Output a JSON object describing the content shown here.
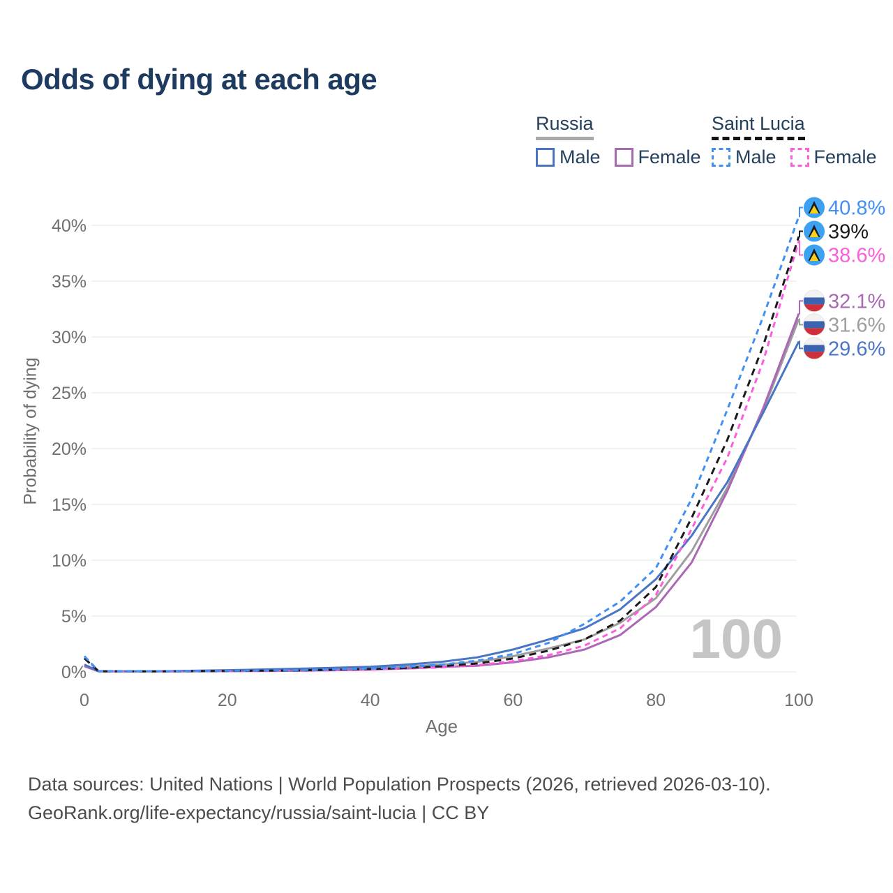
{
  "title": "Odds of dying at each age",
  "watermark": "100",
  "legend": {
    "groups": [
      {
        "label": "Russia",
        "line_style": "solid",
        "underline_color": "#a8a8a8",
        "items": [
          {
            "label": "Male",
            "color": "#4a75c4"
          },
          {
            "label": "Female",
            "color": "#ab68b4"
          }
        ]
      },
      {
        "label": "Saint Lucia",
        "line_style": "dashed",
        "underline_color": "#141414",
        "items": [
          {
            "label": "Male",
            "color": "#4090f5"
          },
          {
            "label": "Female",
            "color": "#fb5ddd"
          }
        ]
      }
    ]
  },
  "chart_data": {
    "type": "line",
    "title": "Odds of dying at each age",
    "xlabel": "Age",
    "ylabel": "Probability of dying",
    "xlim": [
      0,
      100
    ],
    "ylim": [
      0,
      42
    ],
    "grid": "horizontal",
    "x_ticks": [
      0,
      20,
      40,
      60,
      80,
      100
    ],
    "y_ticks": [
      "0%",
      "5%",
      "10%",
      "15%",
      "20%",
      "25%",
      "30%",
      "35%",
      "40%"
    ],
    "y_tick_values": [
      0,
      5,
      10,
      15,
      20,
      25,
      30,
      35,
      40
    ],
    "x": [
      0,
      2,
      10,
      20,
      30,
      40,
      45,
      50,
      55,
      60,
      65,
      70,
      75,
      80,
      85,
      90,
      95,
      100
    ],
    "series": [
      {
        "id": "russia-both",
        "name": "Russia (both sexes)",
        "country": "Russia",
        "sex": "Both",
        "style": "solid",
        "color": "#9e9e9e",
        "flag": "russia",
        "end_label": "31.6%",
        "values": [
          0.55,
          0.04,
          0.04,
          0.1,
          0.18,
          0.32,
          0.48,
          0.65,
          0.9,
          1.4,
          2.1,
          2.9,
          4.4,
          6.6,
          10.8,
          16.5,
          23.4,
          31.6
        ]
      },
      {
        "id": "russia-female",
        "name": "Russia Female",
        "country": "Russia",
        "sex": "Female",
        "style": "solid",
        "color": "#ab68b4",
        "flag": "russia",
        "end_label": "32.1%",
        "values": [
          0.5,
          0.04,
          0.03,
          0.06,
          0.1,
          0.2,
          0.3,
          0.45,
          0.55,
          0.85,
          1.3,
          2.0,
          3.3,
          5.8,
          9.8,
          16.2,
          23.6,
          32.1
        ]
      },
      {
        "id": "russia-male",
        "name": "Russia Male",
        "country": "Russia",
        "sex": "Male",
        "style": "solid",
        "color": "#4a75c4",
        "flag": "russia",
        "end_label": "29.6%",
        "values": [
          0.65,
          0.05,
          0.05,
          0.15,
          0.28,
          0.45,
          0.65,
          0.9,
          1.3,
          2.0,
          2.9,
          3.9,
          5.6,
          8.3,
          12.2,
          17.0,
          23.2,
          29.6
        ]
      },
      {
        "id": "saint-lucia-female",
        "name": "Saint Lucia Female",
        "country": "Saint Lucia",
        "sex": "Female",
        "style": "dashed",
        "dash": "8 6",
        "color": "#fb5ddd",
        "flag": "saint-lucia",
        "end_label": "38.6%",
        "values": [
          1.25,
          0.05,
          0.03,
          0.06,
          0.1,
          0.2,
          0.3,
          0.4,
          0.6,
          0.95,
          1.5,
          2.35,
          3.9,
          6.9,
          12.8,
          19.2,
          27.8,
          38.6
        ]
      },
      {
        "id": "saint-lucia-both",
        "name": "Saint Lucia (both sexes)",
        "country": "Saint Lucia",
        "sex": "Both",
        "style": "dashed",
        "dash": "10 7",
        "color": "#1a1a1a",
        "flag": "saint-lucia",
        "end_label": "39%",
        "values": [
          1.2,
          0.05,
          0.04,
          0.08,
          0.13,
          0.25,
          0.35,
          0.5,
          0.75,
          1.2,
          1.9,
          2.9,
          4.6,
          7.6,
          13.8,
          20.8,
          29.2,
          39.0
        ]
      },
      {
        "id": "saint-lucia-male",
        "name": "Saint Lucia Male",
        "country": "Saint Lucia",
        "sex": "Male",
        "style": "dashed",
        "dash": "8 6",
        "color": "#4090f5",
        "flag": "saint-lucia",
        "end_label": "40.8%",
        "values": [
          1.4,
          0.06,
          0.05,
          0.1,
          0.15,
          0.3,
          0.45,
          0.65,
          1.0,
          1.6,
          2.6,
          4.3,
          6.3,
          9.3,
          15.5,
          23.5,
          31.8,
          40.8
        ]
      }
    ]
  },
  "colors": {
    "title": "#1d3b5f",
    "legend_text": "#24405d",
    "axis_text": "#6f6f6f",
    "grid": "#ededed",
    "watermark": "#c5c5c5",
    "footer_text": "#4c4c4c",
    "flag_saint_lucia_blue": "#3da1f2",
    "flag_saint_lucia_gold": "#f7d117",
    "flag_russia_blue": "#3c63b0",
    "flag_russia_red": "#cf2f38"
  },
  "footer": {
    "line1": "Data sources: United Nations | World Population Prospects (2026, retrieved 2026-03-10).",
    "line2": "GeoRank.org/life-expectancy/russia/saint-lucia | CC BY"
  }
}
